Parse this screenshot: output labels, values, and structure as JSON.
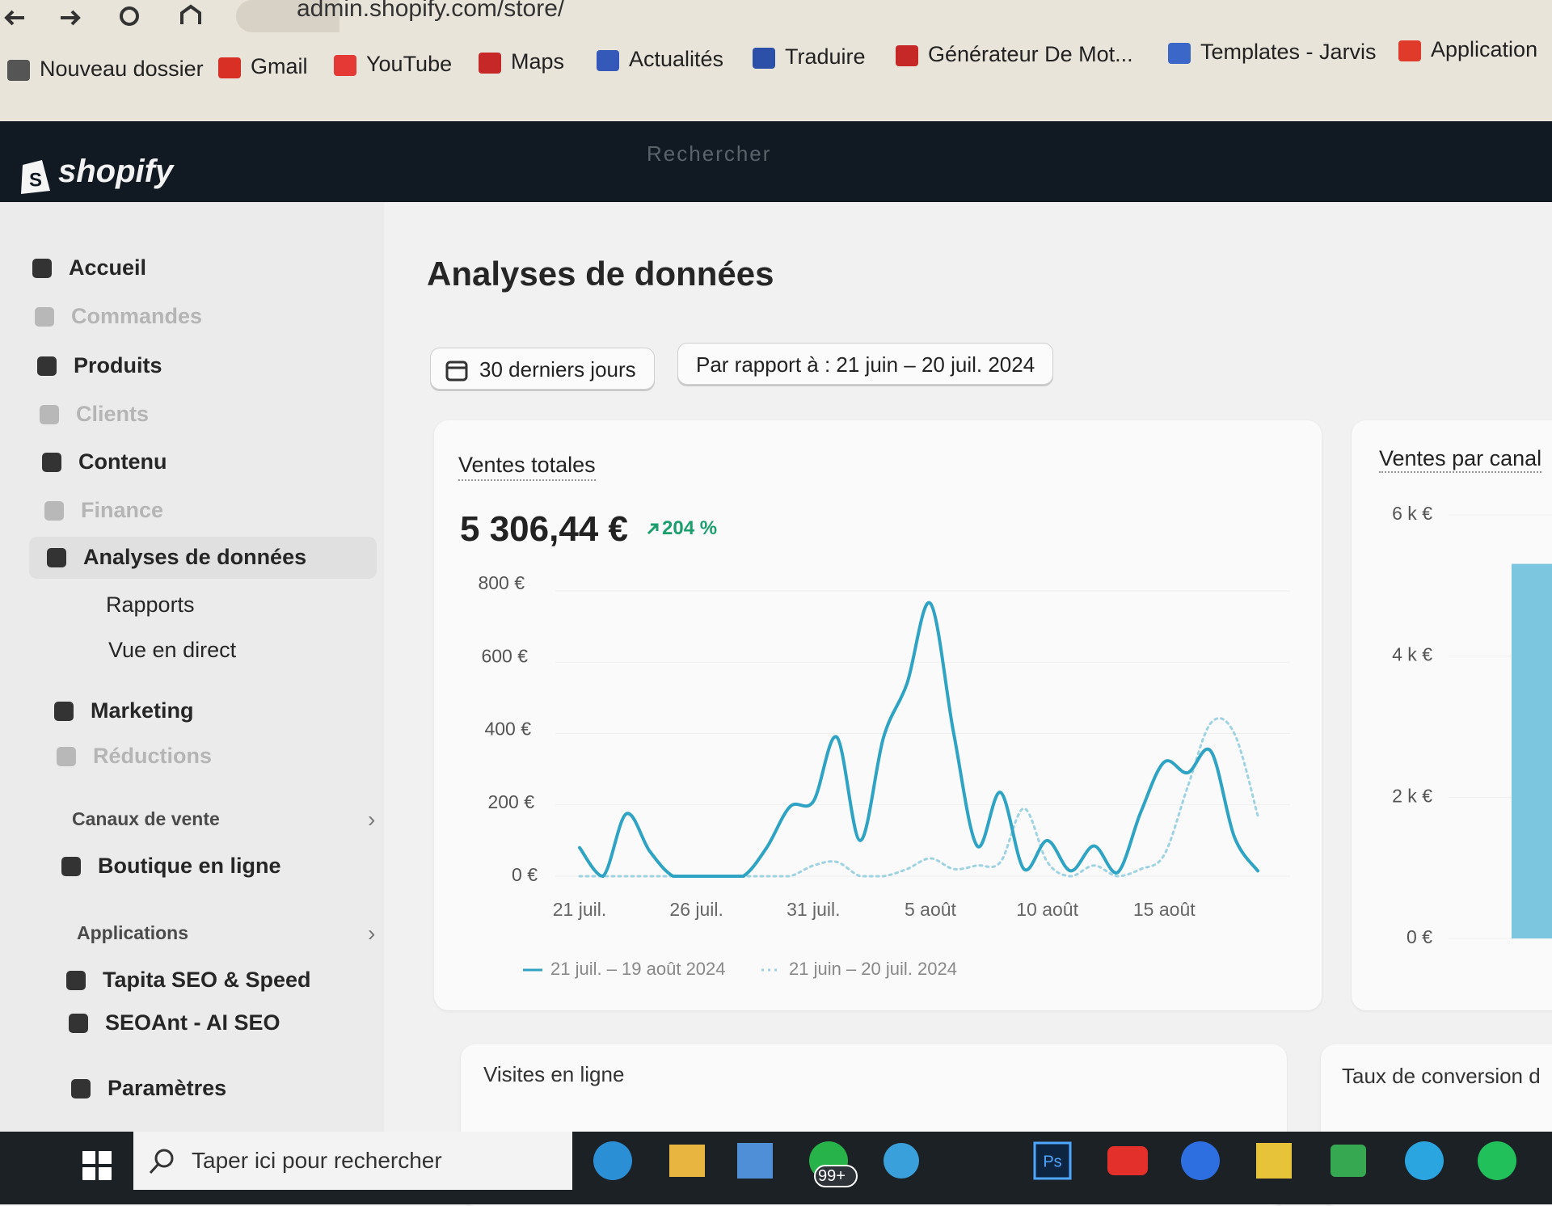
{
  "browser": {
    "url": "admin.shopify.com/store/",
    "bookmarks": [
      "Nouveau dossier",
      "Gmail",
      "YouTube",
      "Maps",
      "Actualités",
      "Traduire",
      "Générateur De Mot...",
      "Templates - Jarvis",
      "Application"
    ]
  },
  "header": {
    "logo": "shopify",
    "search": "Rechercher"
  },
  "sidebar": {
    "items": [
      {
        "label": "Accueil"
      },
      {
        "label": "Commandes",
        "muted": true
      },
      {
        "label": "Produits"
      },
      {
        "label": "Clients",
        "muted": true
      },
      {
        "label": "Contenu"
      },
      {
        "label": "Finance",
        "muted": true
      },
      {
        "label": "Analyses de données",
        "active": true
      },
      {
        "label": "Rapports",
        "sub": true
      },
      {
        "label": "Vue en direct",
        "sub": true
      },
      {
        "label": "Marketing"
      },
      {
        "label": "Réductions",
        "muted": true
      },
      {
        "label": "Canaux de vente",
        "heading": true
      },
      {
        "label": "Boutique en ligne"
      },
      {
        "label": "Applications",
        "heading": true
      },
      {
        "label": "Tapita SEO & Speed"
      },
      {
        "label": "SEOAnt - AI SEO"
      },
      {
        "label": "Paramètres"
      }
    ]
  },
  "main": {
    "title": "Analyses de données",
    "date_button": "30 derniers jours",
    "compare_button": "Par rapport à : 21 juin – 20 juil. 2024"
  },
  "sales_card": {
    "title": "Ventes totales",
    "total": "5 306,44 €",
    "change": "204 %"
  },
  "chart_data": {
    "type": "line",
    "categories": [
      "21 juil.",
      null,
      null,
      null,
      null,
      "26 juil.",
      null,
      null,
      null,
      null,
      "31 juil.",
      null,
      null,
      null,
      null,
      "5 août",
      null,
      null,
      null,
      null,
      "10 août",
      null,
      null,
      null,
      null,
      "15 août",
      null,
      null,
      null,
      null
    ],
    "series": [
      {
        "name": "21 juil. – 19 août 2024",
        "color": "#2ea3c4",
        "dashed": false,
        "values": [
          80,
          0,
          175,
          70,
          0,
          0,
          0,
          0,
          80,
          195,
          210,
          390,
          100,
          390,
          540,
          765,
          400,
          85,
          235,
          20,
          100,
          15,
          85,
          10,
          180,
          320,
          290,
          350,
          110,
          15
        ]
      },
      {
        "name": "21 juin – 20 juil. 2024",
        "color": "#9fd3e2",
        "dashed": true,
        "values": [
          0,
          0,
          0,
          0,
          0,
          0,
          0,
          0,
          0,
          0,
          30,
          40,
          0,
          0,
          20,
          50,
          20,
          30,
          40,
          190,
          40,
          0,
          30,
          0,
          20,
          60,
          250,
          430,
          400,
          170
        ]
      }
    ],
    "ylim": [
      0,
      800
    ],
    "yticks": [
      {
        "value": 0,
        "label": "0 €"
      },
      {
        "value": 200,
        "label": "200 €"
      },
      {
        "value": 400,
        "label": "400 €"
      },
      {
        "value": 600,
        "label": "600 €"
      },
      {
        "value": 800,
        "label": "800 €"
      }
    ]
  },
  "channel_card": {
    "title": "Ventes par canal",
    "chart_data": {
      "type": "bar",
      "values": [
        5306.44
      ],
      "color": "#7cc6e0",
      "ylim": [
        0,
        6000
      ],
      "yticks": [
        {
          "value": 0,
          "label": "0 €"
        },
        {
          "value": 2000,
          "label": "2 k €"
        },
        {
          "value": 4000,
          "label": "4 k €"
        },
        {
          "value": 6000,
          "label": "6 k €"
        }
      ]
    }
  },
  "bottom_cards": [
    "Visites en ligne",
    "Taux de conversion d"
  ],
  "taskbar": {
    "search": "Taper ici pour rechercher",
    "badge": "99+"
  }
}
